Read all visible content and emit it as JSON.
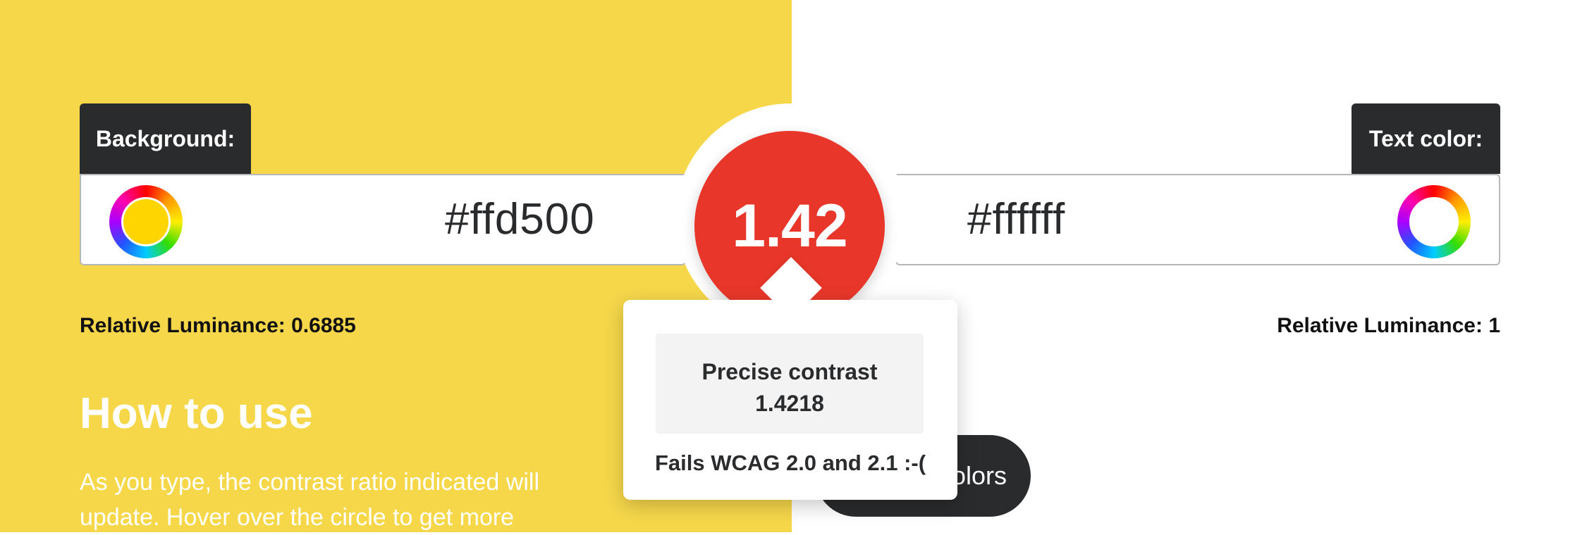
{
  "colors": {
    "background_panel": "#f6d74a",
    "text_panel": "#ffffff",
    "ratio_circle": "#e8372a",
    "dark": "#2a2b2d"
  },
  "background": {
    "label": "Background:",
    "value": "#ffd500",
    "icon": "color-wheel-icon",
    "luminance_label": "Relative Luminance:",
    "luminance_value": "0.6885"
  },
  "text_color": {
    "label": "Text color:",
    "value": "#ffffff",
    "icon": "color-wheel-icon",
    "luminance_label": "Relative Luminance:",
    "luminance_value": "1"
  },
  "contrast": {
    "ratio": "1.42",
    "popover": {
      "precise_label": "Precise contrast",
      "precise_value": "1.4218",
      "result": "Fails WCAG 2.0 and 2.1 :-("
    }
  },
  "how_to_use": {
    "title": "How to use",
    "text": "As you type, the contrast ratio indicated will update. Hover over the circle to get more"
  },
  "swap_button": {
    "label_visible": "olors"
  }
}
